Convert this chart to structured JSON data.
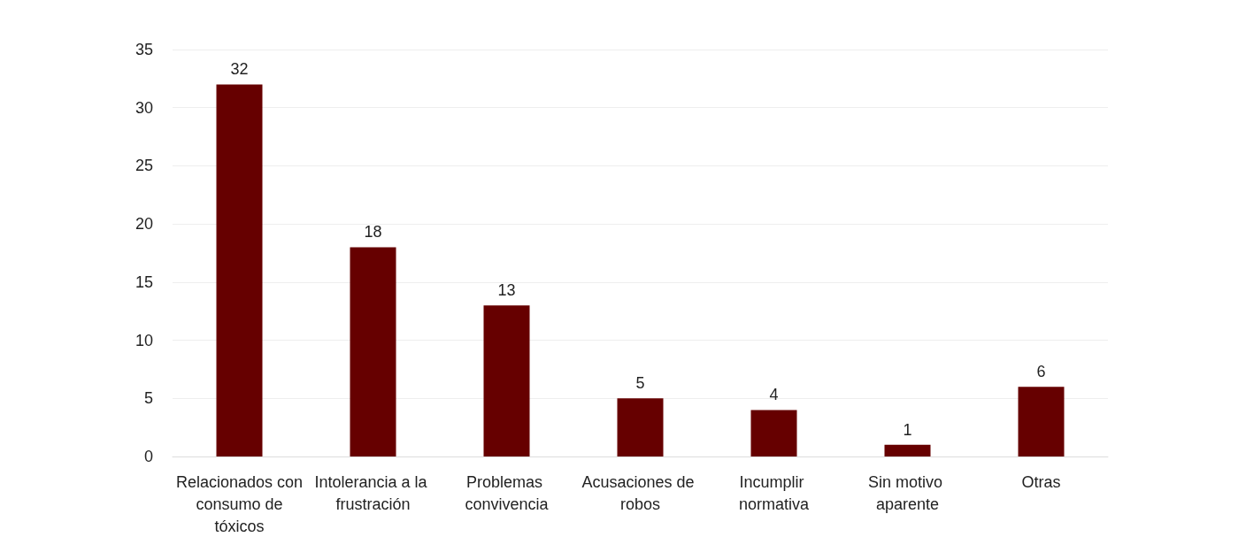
{
  "chart_data": {
    "type": "bar",
    "categories": [
      "Relacionados con consumo de tóxicos",
      "Intolerancia a la frustración",
      "Problemas convivencia",
      "Acusaciones de robos",
      "Incumplir normativa",
      "Sin motivo aparente",
      "Otras"
    ],
    "values": [
      32,
      18,
      13,
      5,
      4,
      1,
      6
    ],
    "color": "#660000",
    "ylim": [
      0,
      35
    ],
    "yticks": [
      0,
      5,
      10,
      15,
      20,
      25,
      30,
      35
    ],
    "grid": "y",
    "data_labels": true
  }
}
